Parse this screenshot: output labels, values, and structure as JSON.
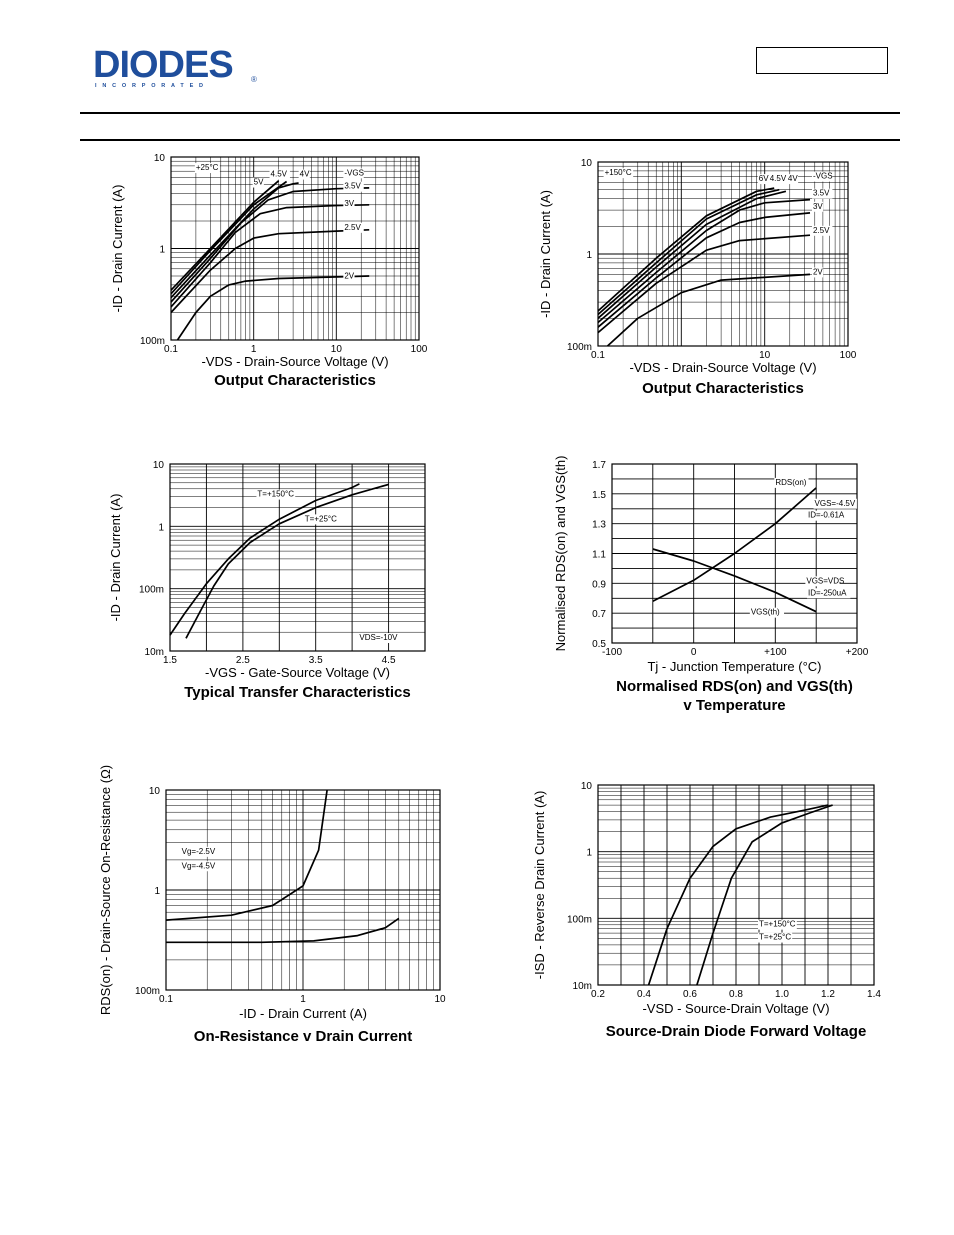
{
  "header": {
    "logo_text": "DIODES",
    "logo_sub": "INCORPORATED",
    "logo_mark": "®",
    "part_number": ""
  },
  "colors": {
    "ink": "#000000",
    "logo_blue": "#1f4e9c",
    "background": "#ffffff"
  },
  "chart_data": [
    {
      "id": "output-25",
      "type": "line",
      "title": "Output Characteristics",
      "xlabel": "-VDS - Drain-Source Voltage (V)",
      "ylabel": "-ID - Drain Current (A)",
      "xscale": "log",
      "yscale": "log",
      "xlim": [
        0.1,
        100
      ],
      "ylim": [
        0.1,
        10
      ],
      "xticks": [
        {
          "v": 0.1,
          "label": "0.1"
        },
        {
          "v": 1,
          "label": "1"
        },
        {
          "v": 10,
          "label": "10"
        },
        {
          "v": 100,
          "label": "100"
        }
      ],
      "yticks": [
        {
          "v": 0.1,
          "label": "100m"
        },
        {
          "v": 1,
          "label": "1"
        },
        {
          "v": 10,
          "label": "10"
        }
      ],
      "grid": true,
      "annotations": [
        {
          "text": "+25°C",
          "x": 0.2,
          "y": 7.2
        },
        {
          "text": "-VGS",
          "x": 12.5,
          "y": 6.3
        },
        {
          "text": "4.5V",
          "x": 1.6,
          "y": 6.1
        },
        {
          "text": "4V",
          "x": 3.6,
          "y": 6.1
        },
        {
          "text": "5V",
          "x": 1.0,
          "y": 5.0
        },
        {
          "text": "3.5V",
          "x": 12.5,
          "y": 4.5
        },
        {
          "text": "3V",
          "x": 12.5,
          "y": 2.9
        },
        {
          "text": "2.5V",
          "x": 12.5,
          "y": 1.6
        },
        {
          "text": "2V",
          "x": 12.5,
          "y": 0.47
        }
      ],
      "series": [
        {
          "name": "5V",
          "x": [
            0.1,
            0.3,
            1,
            2
          ],
          "y": [
            0.35,
            1.0,
            3.2,
            5.5
          ]
        },
        {
          "name": "4.5V",
          "x": [
            0.1,
            0.3,
            1,
            2.5
          ],
          "y": [
            0.32,
            0.95,
            3.0,
            5.4
          ]
        },
        {
          "name": "4V",
          "x": [
            0.1,
            0.3,
            1,
            2,
            3,
            3.5
          ],
          "y": [
            0.29,
            0.85,
            2.7,
            4.6,
            5.1,
            5.2
          ]
        },
        {
          "name": "3.5V",
          "x": [
            0.1,
            0.3,
            0.7,
            1.5,
            3,
            10,
            25
          ],
          "y": [
            0.26,
            0.78,
            1.9,
            3.4,
            4.2,
            4.5,
            4.6
          ]
        },
        {
          "name": "3V",
          "x": [
            0.1,
            0.3,
            0.6,
            1.2,
            2.5,
            10,
            25
          ],
          "y": [
            0.23,
            0.7,
            1.5,
            2.4,
            2.8,
            2.95,
            3.0
          ]
        },
        {
          "name": "2.5V",
          "x": [
            0.1,
            0.3,
            0.6,
            1,
            2,
            10,
            25
          ],
          "y": [
            0.2,
            0.58,
            1.0,
            1.3,
            1.45,
            1.55,
            1.6
          ]
        },
        {
          "name": "2V",
          "x": [
            0.12,
            0.2,
            0.3,
            0.5,
            0.8,
            2,
            25
          ],
          "y": [
            0.1,
            0.2,
            0.3,
            0.4,
            0.44,
            0.47,
            0.5
          ]
        }
      ]
    },
    {
      "id": "output-150",
      "type": "line",
      "title": "Output Characteristics",
      "xlabel": "-VDS - Drain-Source Voltage (V)",
      "ylabel": "-ID - Drain Current (A)",
      "xscale": "log",
      "yscale": "log",
      "xlim": [
        0.1,
        100
      ],
      "ylim": [
        0.1,
        10
      ],
      "xticks": [
        {
          "v": 0.1,
          "label": "0.1"
        },
        {
          "v": 10,
          "label": "10"
        },
        {
          "v": 100,
          "label": "100"
        }
      ],
      "yticks": [
        {
          "v": 0.1,
          "label": "100m"
        },
        {
          "v": 1,
          "label": "1"
        },
        {
          "v": 10,
          "label": "10"
        }
      ],
      "grid": true,
      "annotations": [
        {
          "text": "+150°C",
          "x": 0.12,
          "y": 7.2
        },
        {
          "text": "-VGS",
          "x": 38,
          "y": 6.6
        },
        {
          "text": "6V",
          "x": 8.5,
          "y": 6.2
        },
        {
          "text": "4.5V",
          "x": 11.5,
          "y": 6.2
        },
        {
          "text": "4V",
          "x": 19,
          "y": 6.2
        },
        {
          "text": "3.5V",
          "x": 38,
          "y": 4.3
        },
        {
          "text": "3V",
          "x": 38,
          "y": 3.1
        },
        {
          "text": "2.5V",
          "x": 38,
          "y": 1.7
        },
        {
          "text": "2V",
          "x": 38,
          "y": 0.6
        }
      ],
      "series": [
        {
          "name": "6V",
          "x": [
            0.1,
            0.5,
            2,
            8,
            13
          ],
          "y": [
            0.24,
            0.9,
            2.6,
            4.8,
            5.2
          ]
        },
        {
          "name": "4.5V",
          "x": [
            0.1,
            0.5,
            2,
            8,
            15
          ],
          "y": [
            0.22,
            0.8,
            2.4,
            4.4,
            5.0
          ]
        },
        {
          "name": "4V",
          "x": [
            0.1,
            0.5,
            2,
            8,
            18
          ],
          "y": [
            0.2,
            0.72,
            2.1,
            4.0,
            4.8
          ]
        },
        {
          "name": "3.5V",
          "x": [
            0.1,
            0.5,
            2,
            5,
            10,
            35
          ],
          "y": [
            0.18,
            0.63,
            1.8,
            3.0,
            3.6,
            3.9
          ]
        },
        {
          "name": "3V",
          "x": [
            0.1,
            0.5,
            2,
            5,
            10,
            35
          ],
          "y": [
            0.16,
            0.55,
            1.5,
            2.2,
            2.5,
            2.8
          ]
        },
        {
          "name": "2.5V",
          "x": [
            0.1,
            0.5,
            2,
            5,
            35
          ],
          "y": [
            0.14,
            0.48,
            1.1,
            1.4,
            1.6
          ]
        },
        {
          "name": "2V",
          "x": [
            0.13,
            0.3,
            1,
            3,
            35
          ],
          "y": [
            0.1,
            0.2,
            0.38,
            0.52,
            0.6
          ]
        }
      ]
    },
    {
      "id": "transfer",
      "type": "line",
      "title": "Typical Transfer Characteristics",
      "xlabel": "-VGS - Gate-Source Voltage (V)",
      "ylabel": "-ID - Drain Current (A)",
      "xscale": "linear",
      "yscale": "log",
      "xlim": [
        1.5,
        5
      ],
      "ylim": [
        0.01,
        10
      ],
      "xticks": [
        {
          "v": 1.5,
          "label": "1.5"
        },
        {
          "v": 2.5,
          "label": "2.5"
        },
        {
          "v": 3.5,
          "label": "3.5"
        },
        {
          "v": 4.5,
          "label": "4.5"
        }
      ],
      "yticks": [
        {
          "v": 0.01,
          "label": "10m"
        },
        {
          "v": 0.1,
          "label": "100m"
        },
        {
          "v": 1,
          "label": "1"
        },
        {
          "v": 10,
          "label": "10"
        }
      ],
      "grid": true,
      "annotations": [
        {
          "text": "T=+150°C",
          "x": 2.7,
          "y": 3.0
        },
        {
          "text": "T=+25°C",
          "x": 3.35,
          "y": 1.2
        },
        {
          "text": "VDS=-10V",
          "x": 4.1,
          "y": 0.015
        }
      ],
      "series": [
        {
          "name": "T=+150°C",
          "x": [
            1.5,
            1.7,
            2.0,
            2.3,
            2.6,
            3.0,
            3.5,
            4.0,
            4.1
          ],
          "y": [
            0.018,
            0.04,
            0.12,
            0.3,
            0.65,
            1.3,
            2.6,
            4.2,
            4.8
          ]
        },
        {
          "name": "T=+25°C",
          "x": [
            1.72,
            1.9,
            2.1,
            2.3,
            2.6,
            3.0,
            3.5,
            4.0,
            4.5
          ],
          "y": [
            0.016,
            0.04,
            0.11,
            0.25,
            0.55,
            1.1,
            2.0,
            3.2,
            4.7
          ]
        }
      ]
    },
    {
      "id": "normalised",
      "type": "line",
      "title": "Normalised RDS(on) and VGS(th)",
      "title2": "v Temperature",
      "xlabel": "Tj - Junction Temperature (°C)",
      "ylabel": "Normalised RDS(on) and VGS(th)",
      "xscale": "linear",
      "yscale": "linear",
      "xlim": [
        -100,
        200
      ],
      "ylim": [
        0.5,
        1.7
      ],
      "xticks": [
        {
          "v": -100,
          "label": "-100"
        },
        {
          "v": 0,
          "label": "0"
        },
        {
          "v": 100,
          "label": "+100"
        },
        {
          "v": 200,
          "label": "+200"
        }
      ],
      "yticks": [
        {
          "v": 0.5,
          "label": "0.5"
        },
        {
          "v": 0.7,
          "label": "0.7"
        },
        {
          "v": 0.9,
          "label": "0.9"
        },
        {
          "v": 1.1,
          "label": "1.1"
        },
        {
          "v": 1.3,
          "label": "1.3"
        },
        {
          "v": 1.5,
          "label": "1.5"
        },
        {
          "v": 1.7,
          "label": "1.7"
        }
      ],
      "grid": true,
      "annotations": [
        {
          "text": "RDS(on)",
          "x": 100,
          "y": 1.56
        },
        {
          "text": "VGS=-4.5V",
          "x": 148,
          "y": 1.42
        },
        {
          "text": "ID=-0.61A",
          "x": 140,
          "y": 1.34
        },
        {
          "text": "VGS=VDS",
          "x": 138,
          "y": 0.9
        },
        {
          "text": "ID=-250uA",
          "x": 140,
          "y": 0.82
        },
        {
          "text": "VGS(th)",
          "x": 70,
          "y": 0.69
        }
      ],
      "series": [
        {
          "name": "RDS(on)",
          "x": [
            -50,
            0,
            50,
            100,
            150
          ],
          "y": [
            0.78,
            0.92,
            1.1,
            1.3,
            1.54
          ]
        },
        {
          "name": "VGS(th)",
          "x": [
            -50,
            0,
            50,
            100,
            150
          ],
          "y": [
            1.13,
            1.05,
            0.95,
            0.84,
            0.71
          ]
        }
      ]
    },
    {
      "id": "onres",
      "type": "line",
      "title": "On-Resistance v Drain Current",
      "xlabel": "-ID - Drain Current (A)",
      "ylabel": "RDS(on) - Drain-Source On-Resistance (Ω)",
      "xscale": "log",
      "yscale": "log",
      "xlim": [
        0.1,
        10
      ],
      "ylim": [
        0.1,
        10
      ],
      "xticks": [
        {
          "v": 0.1,
          "label": "0.1"
        },
        {
          "v": 1,
          "label": "1"
        },
        {
          "v": 10,
          "label": "10"
        }
      ],
      "yticks": [
        {
          "v": 0.1,
          "label": "100m"
        },
        {
          "v": 1,
          "label": "1"
        },
        {
          "v": 10,
          "label": "10"
        }
      ],
      "grid": true,
      "annotations": [
        {
          "text": "Vg=-2.5V",
          "x": 0.13,
          "y": 2.3
        },
        {
          "text": "Vg=-4.5V",
          "x": 0.13,
          "y": 1.65
        }
      ],
      "series": [
        {
          "name": "Vg=-2.5V",
          "x": [
            0.1,
            0.3,
            0.6,
            1.0,
            1.3,
            1.5
          ],
          "y": [
            0.5,
            0.56,
            0.7,
            1.1,
            2.5,
            10
          ]
        },
        {
          "name": "Vg=-4.5V",
          "x": [
            0.1,
            0.5,
            1.2,
            2.5,
            4.0,
            5.0
          ],
          "y": [
            0.3,
            0.3,
            0.31,
            0.35,
            0.42,
            0.52
          ]
        }
      ]
    },
    {
      "id": "diode",
      "type": "line",
      "title": "Source-Drain Diode Forward Voltage",
      "xlabel": "-VSD - Source-Drain Voltage (V)",
      "ylabel": "-ISD - Reverse Drain Current (A)",
      "xscale": "linear",
      "yscale": "log",
      "xlim": [
        0.2,
        1.4
      ],
      "ylim": [
        0.01,
        10
      ],
      "xticks": [
        {
          "v": 0.2,
          "label": "0.2"
        },
        {
          "v": 0.4,
          "label": "0.4"
        },
        {
          "v": 0.6,
          "label": "0.6"
        },
        {
          "v": 0.8,
          "label": "0.8"
        },
        {
          "v": 1.0,
          "label": "1.0"
        },
        {
          "v": 1.2,
          "label": "1.2"
        },
        {
          "v": 1.4,
          "label": "1.4"
        }
      ],
      "yticks": [
        {
          "v": 0.01,
          "label": "10m"
        },
        {
          "v": 0.1,
          "label": "100m"
        },
        {
          "v": 1,
          "label": "1"
        },
        {
          "v": 10,
          "label": "10"
        }
      ],
      "grid": true,
      "annotations": [
        {
          "text": "T=+150°C",
          "x": 0.9,
          "y": 0.075
        },
        {
          "text": "T=+25°C",
          "x": 0.9,
          "y": 0.048
        }
      ],
      "series": [
        {
          "name": "T=+150°C",
          "x": [
            0.42,
            0.5,
            0.6,
            0.7,
            0.8,
            0.95,
            1.1,
            1.2
          ],
          "y": [
            0.01,
            0.07,
            0.4,
            1.2,
            2.2,
            3.3,
            4.2,
            5.0
          ]
        },
        {
          "name": "T=+25°C",
          "x": [
            0.63,
            0.7,
            0.78,
            0.87,
            1.0,
            1.12,
            1.22
          ],
          "y": [
            0.01,
            0.06,
            0.4,
            1.4,
            2.7,
            3.8,
            5.0
          ]
        }
      ]
    }
  ]
}
